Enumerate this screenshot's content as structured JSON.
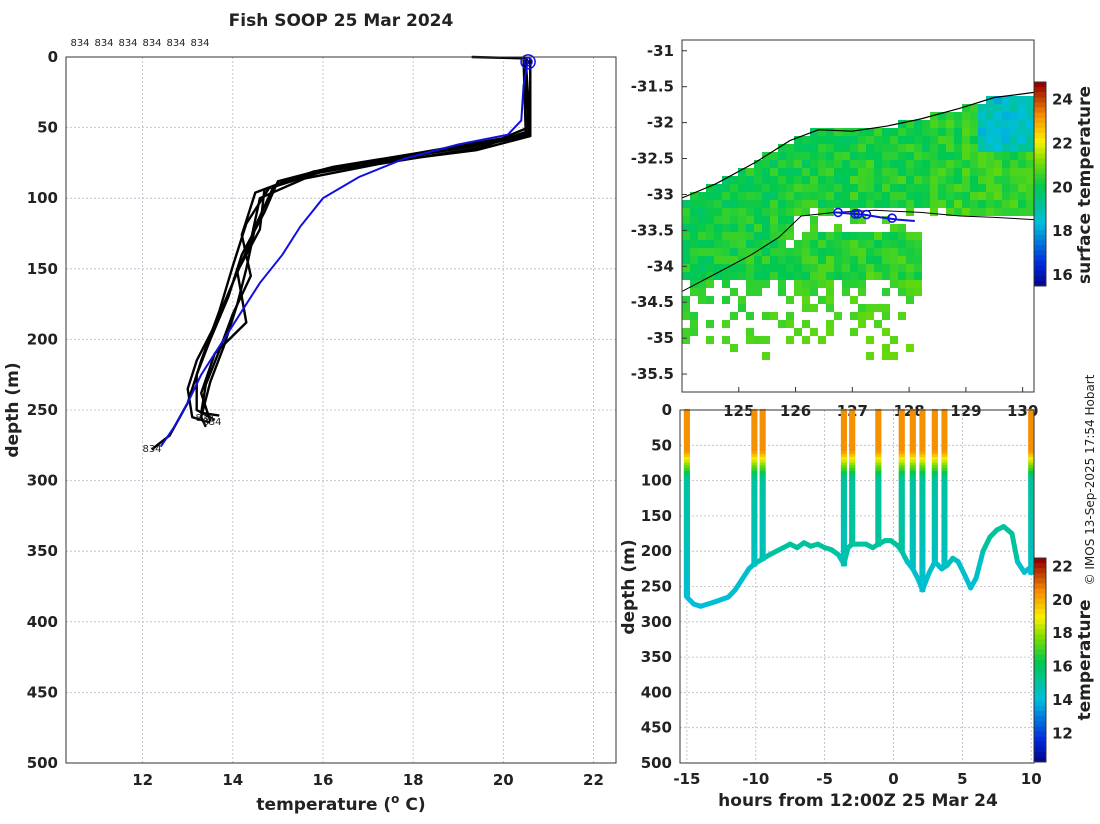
{
  "title": "Fish SOOP 25 Mar 2024",
  "copyright": "© IMOS 13-Sep-2025 17:54 Hobart",
  "chart_data": [
    {
      "id": "profile",
      "type": "line",
      "xlabel": "temperature (",
      "xlabel_sup": "o",
      "xlabel_tail": " C)",
      "ylabel": "depth (m)",
      "xlim": [
        10.3,
        22.5
      ],
      "ylim": [
        500,
        0
      ],
      "xticks": [
        12,
        14,
        16,
        18,
        20,
        22
      ],
      "yticks": [
        0,
        50,
        100,
        150,
        200,
        250,
        300,
        350,
        400,
        450,
        500
      ],
      "top_labels": [
        "834",
        "834",
        "834",
        "834",
        "834",
        "834"
      ],
      "end_labels": [
        "834",
        "834",
        "834"
      ],
      "series": [
        {
          "name": "profiles",
          "color": "#000000",
          "profiles": [
            [
              [
                19.3,
                0
              ],
              [
                20.5,
                1
              ],
              [
                20.6,
                5
              ],
              [
                20.6,
                55
              ],
              [
                19.6,
                62
              ],
              [
                17.6,
                72
              ],
              [
                15.9,
                82
              ],
              [
                14.8,
                93
              ],
              [
                14.3,
                118
              ],
              [
                14.0,
                148
              ],
              [
                13.7,
                180
              ],
              [
                13.3,
                215
              ],
              [
                13.0,
                245
              ],
              [
                12.6,
                268
              ],
              [
                12.2,
                278
              ]
            ],
            [
              [
                20.5,
                2
              ],
              [
                20.55,
                50
              ],
              [
                19.8,
                60
              ],
              [
                17.9,
                70
              ],
              [
                16.0,
                80
              ],
              [
                14.9,
                92
              ],
              [
                14.5,
                120
              ],
              [
                14.3,
                150
              ],
              [
                14.1,
                175
              ],
              [
                13.8,
                205
              ],
              [
                13.5,
                230
              ],
              [
                13.3,
                255
              ],
              [
                13.4,
                262
              ]
            ],
            [
              [
                20.5,
                3
              ],
              [
                20.6,
                52
              ],
              [
                19.5,
                64
              ],
              [
                17.2,
                76
              ],
              [
                15.6,
                86
              ],
              [
                14.6,
                100
              ],
              [
                14.4,
                130
              ],
              [
                14.0,
                160
              ],
              [
                13.6,
                190
              ],
              [
                13.2,
                215
              ],
              [
                13.0,
                235
              ],
              [
                13.1,
                255
              ],
              [
                13.5,
                259
              ]
            ],
            [
              [
                20.45,
                2
              ],
              [
                20.5,
                55
              ],
              [
                19.9,
                58
              ],
              [
                18.1,
                68
              ],
              [
                16.2,
                78
              ],
              [
                15.0,
                88
              ],
              [
                14.7,
                110
              ],
              [
                14.2,
                140
              ],
              [
                13.9,
                170
              ],
              [
                13.5,
                200
              ],
              [
                13.2,
                225
              ],
              [
                13.2,
                250
              ],
              [
                13.6,
                257
              ]
            ],
            [
              [
                20.6,
                1
              ],
              [
                20.6,
                56
              ],
              [
                19.4,
                66
              ],
              [
                17.4,
                74
              ],
              [
                15.5,
                84
              ],
              [
                14.5,
                96
              ],
              [
                14.2,
                126
              ],
              [
                14.4,
                155
              ],
              [
                14.0,
                182
              ],
              [
                13.7,
                208
              ],
              [
                13.4,
                232
              ],
              [
                13.3,
                252
              ],
              [
                13.7,
                254
              ]
            ],
            [
              [
                20.5,
                4
              ],
              [
                20.55,
                54
              ],
              [
                19.7,
                61
              ],
              [
                17.7,
                71
              ],
              [
                15.8,
                81
              ],
              [
                14.7,
                94
              ],
              [
                14.6,
                122
              ],
              [
                14.1,
                152
              ],
              [
                14.3,
                188
              ],
              [
                13.6,
                210
              ],
              [
                13.3,
                238
              ],
              [
                13.5,
                258
              ]
            ]
          ]
        },
        {
          "name": "mean",
          "color": "#1010e0",
          "points": [
            [
              20.55,
              2
            ],
            [
              20.45,
              20
            ],
            [
              20.4,
              45
            ],
            [
              20.1,
              55
            ],
            [
              19.0,
              62
            ],
            [
              17.8,
              72
            ],
            [
              16.8,
              85
            ],
            [
              16.0,
              100
            ],
            [
              15.5,
              120
            ],
            [
              15.1,
              140
            ],
            [
              14.6,
              160
            ],
            [
              14.2,
              180
            ],
            [
              13.8,
              200
            ],
            [
              13.3,
              225
            ],
            [
              13.0,
              245
            ],
            [
              12.7,
              262
            ],
            [
              12.4,
              276
            ]
          ]
        }
      ]
    },
    {
      "id": "map",
      "type": "heatmap",
      "colorbar_label": "surface temperature",
      "colorbar_ticks": [
        16,
        18,
        20,
        22,
        24
      ],
      "colorbar_range": [
        15.5,
        24.8
      ],
      "xlim": [
        124.0,
        130.2
      ],
      "ylim": [
        -35.75,
        -30.85
      ],
      "xticks": [
        125,
        126,
        127,
        128,
        129,
        130
      ],
      "xtick_labels": [
        "125",
        "126",
        "127",
        "128",
        "129",
        "130"
      ],
      "yticks": [
        -31,
        -31.5,
        -32,
        -32.5,
        -33,
        -33.5,
        -34,
        -34.5,
        -35,
        -35.5
      ],
      "ytick_labels": [
        "-31",
        "-31.5",
        "-32",
        "-32.5",
        "-33",
        "-33.5",
        "-34",
        "-34.5",
        "-35",
        "-35.5"
      ],
      "coastline": [
        [
          124.0,
          -33.05
        ],
        [
          124.6,
          -32.85
        ],
        [
          125.3,
          -32.55
        ],
        [
          125.9,
          -32.25
        ],
        [
          126.4,
          -32.1
        ],
        [
          127.0,
          -32.12
        ],
        [
          127.6,
          -32.05
        ],
        [
          128.2,
          -31.95
        ],
        [
          128.9,
          -31.8
        ],
        [
          129.5,
          -31.65
        ],
        [
          130.2,
          -31.58
        ]
      ],
      "shelf_edge": [
        [
          124.0,
          -34.35
        ],
        [
          124.6,
          -34.1
        ],
        [
          125.2,
          -33.85
        ],
        [
          125.7,
          -33.6
        ],
        [
          126.1,
          -33.3
        ],
        [
          126.7,
          -33.25
        ],
        [
          127.4,
          -33.22
        ],
        [
          128.2,
          -33.25
        ],
        [
          128.9,
          -33.3
        ],
        [
          129.5,
          -33.32
        ],
        [
          130.2,
          -33.35
        ]
      ],
      "ship_track": [
        [
          126.7,
          -33.25
        ],
        [
          127.0,
          -33.27
        ],
        [
          127.2,
          -33.28
        ],
        [
          127.5,
          -33.32
        ],
        [
          127.8,
          -33.35
        ],
        [
          128.1,
          -33.37
        ]
      ],
      "ship_stations": [
        [
          126.75,
          -33.25
        ],
        [
          127.05,
          -33.27
        ],
        [
          127.1,
          -33.27
        ],
        [
          127.25,
          -33.28
        ],
        [
          127.7,
          -33.33
        ]
      ]
    },
    {
      "id": "section",
      "type": "scatter",
      "xlabel": "hours from 12:00Z 25 Mar 24",
      "ylabel": "depth (m)",
      "colorbar_label": "temperature",
      "colorbar_ticks": [
        12,
        14,
        16,
        18,
        20,
        22
      ],
      "colorbar_range": [
        10.3,
        22.5
      ],
      "xlim": [
        -15.5,
        10.2
      ],
      "ylim": [
        500,
        0
      ],
      "xticks": [
        -15,
        -10,
        -5,
        0,
        5,
        10
      ],
      "yticks": [
        0,
        50,
        100,
        150,
        200,
        250,
        300,
        350,
        400,
        450,
        500
      ],
      "bottom_trace": [
        [
          -15.0,
          265
        ],
        [
          -14.5,
          275
        ],
        [
          -14.0,
          278
        ],
        [
          -13.0,
          272
        ],
        [
          -12.0,
          265
        ],
        [
          -11.5,
          255
        ],
        [
          -11.0,
          240
        ],
        [
          -10.5,
          225
        ],
        [
          -10.1,
          218
        ],
        [
          -9.6,
          212
        ],
        [
          -9.0,
          205
        ],
        [
          -8.5,
          200
        ],
        [
          -8.0,
          195
        ],
        [
          -7.5,
          190
        ],
        [
          -7.0,
          195
        ],
        [
          -6.5,
          188
        ],
        [
          -6.0,
          193
        ],
        [
          -5.5,
          190
        ],
        [
          -5.0,
          195
        ],
        [
          -4.5,
          198
        ],
        [
          -4.0,
          205
        ],
        [
          -3.6,
          218
        ],
        [
          -3.3,
          195
        ],
        [
          -3.0,
          190
        ],
        [
          -2.5,
          190
        ],
        [
          -2.0,
          190
        ],
        [
          -1.5,
          195
        ],
        [
          -1.1,
          190
        ],
        [
          -0.6,
          185
        ],
        [
          -0.2,
          185
        ],
        [
          0.3,
          192
        ],
        [
          0.6,
          200
        ],
        [
          1.0,
          215
        ],
        [
          1.4,
          225
        ],
        [
          1.8,
          240
        ],
        [
          2.1,
          255
        ],
        [
          2.6,
          230
        ],
        [
          3.0,
          215
        ],
        [
          3.5,
          225
        ],
        [
          3.9,
          220
        ],
        [
          4.3,
          210
        ],
        [
          4.7,
          215
        ],
        [
          5.2,
          235
        ],
        [
          5.6,
          252
        ],
        [
          6.0,
          238
        ],
        [
          6.5,
          200
        ],
        [
          7.0,
          180
        ],
        [
          7.5,
          170
        ],
        [
          8.0,
          165
        ],
        [
          8.6,
          175
        ],
        [
          9.0,
          215
        ],
        [
          9.5,
          230
        ],
        [
          9.8,
          225
        ],
        [
          10.0,
          230
        ]
      ],
      "casts": [
        [
          -15.0,
          265
        ],
        [
          -10.1,
          218
        ],
        [
          -9.5,
          212
        ],
        [
          -3.6,
          218
        ],
        [
          -3.0,
          190
        ],
        [
          -1.1,
          190
        ],
        [
          0.6,
          200
        ],
        [
          1.4,
          225
        ],
        [
          2.1,
          255
        ],
        [
          3.0,
          215
        ],
        [
          3.7,
          220
        ],
        [
          10.0,
          230
        ]
      ],
      "surface_temp": 20.6
    }
  ]
}
